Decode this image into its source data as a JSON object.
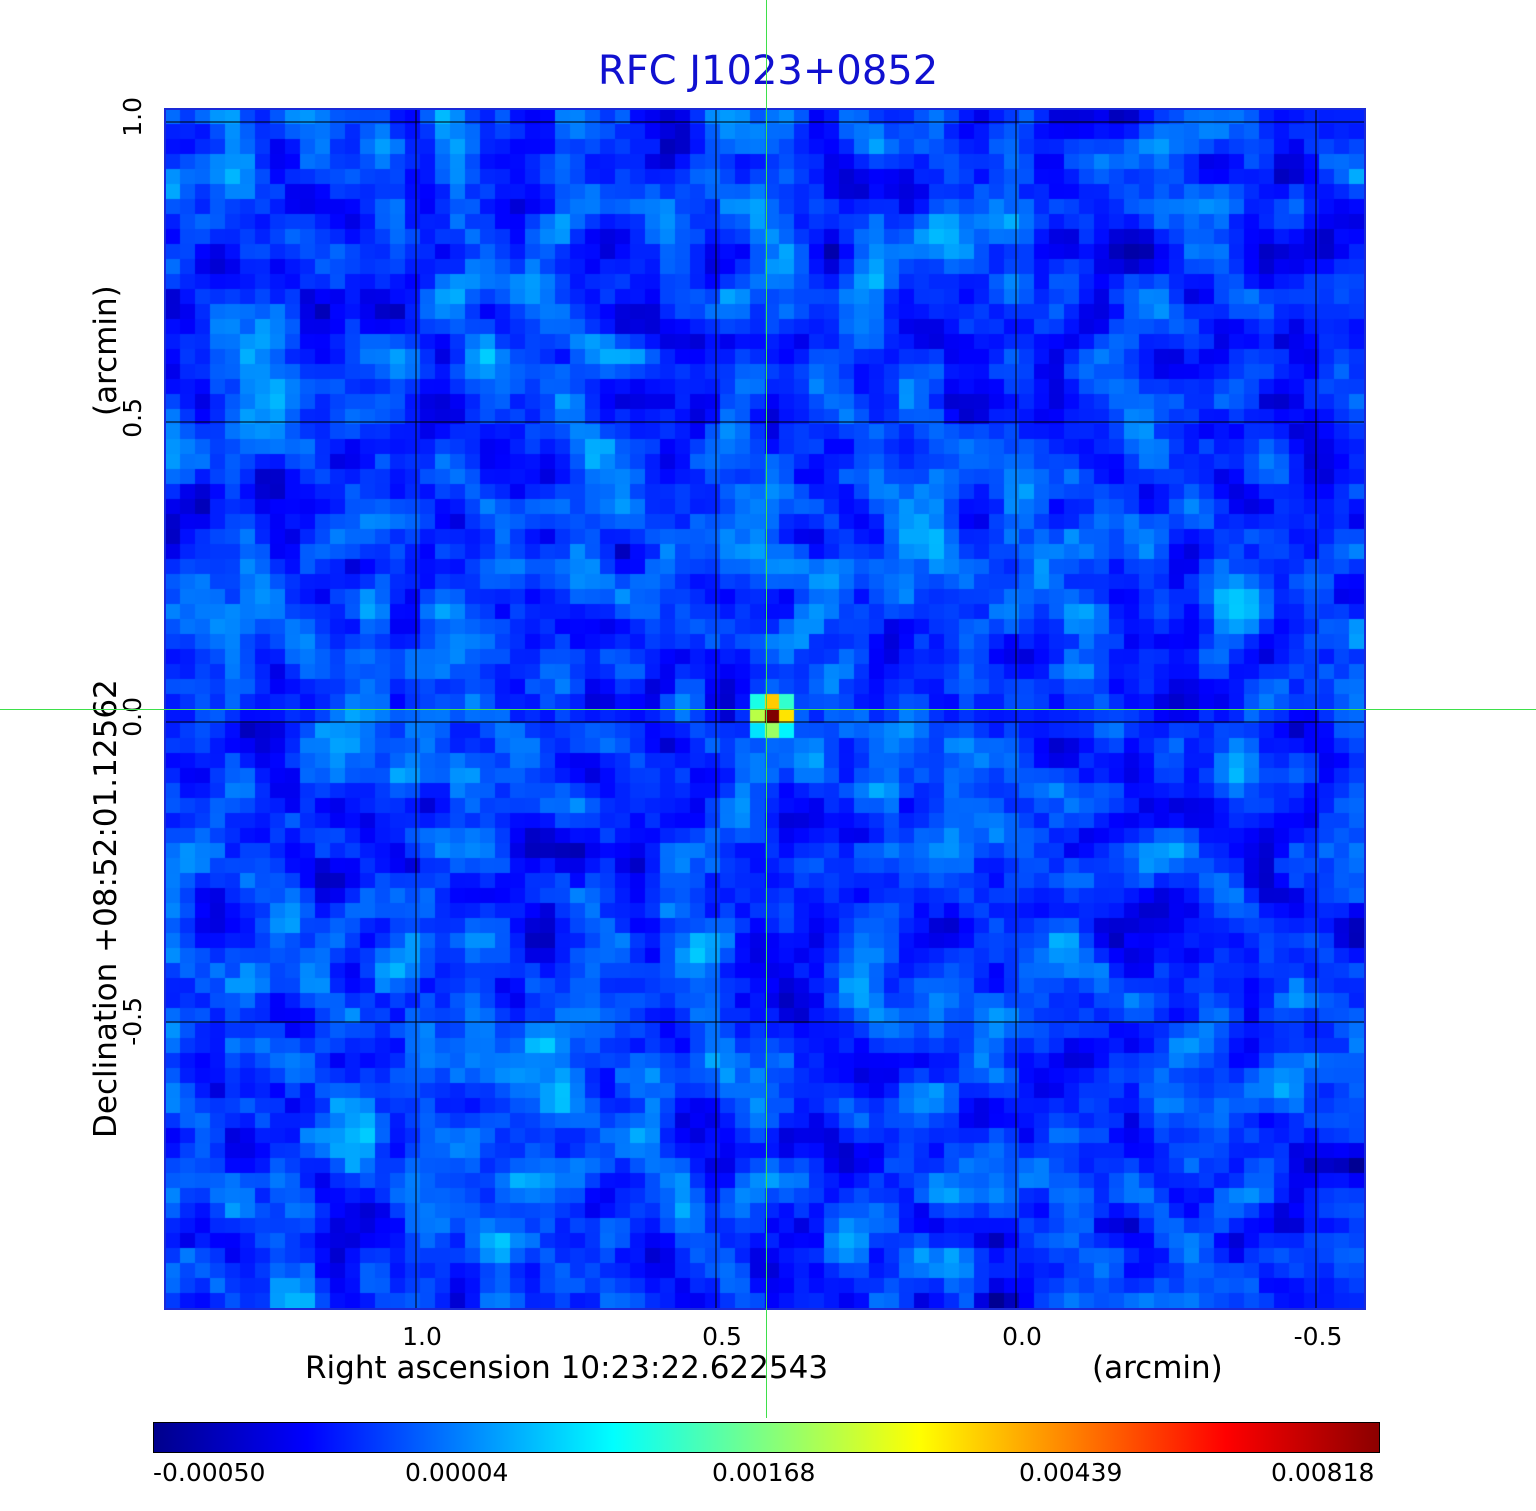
{
  "title": "RFC J1023+0852",
  "x_axis": {
    "label": "Right ascension  10:23:22.622543",
    "unit_label": "(arcmin)",
    "ticks": [
      "1.0",
      "0.5",
      "0.0",
      "-0.5"
    ]
  },
  "y_axis": {
    "label": "Declination  +08:52:01.12562",
    "unit_label": "(arcmin)",
    "ticks": [
      "1.0",
      "0.5",
      "0.0",
      "-0.5"
    ]
  },
  "colorbar": {
    "ticks": [
      "-0.00050",
      "0.00004",
      "0.00168",
      "0.00439",
      "0.00818"
    ],
    "colors": [
      "#00008c",
      "#0000ff",
      "#0080ff",
      "#00ffff",
      "#80ff80",
      "#ffff00",
      "#ff8000",
      "#ff0000",
      "#8c0000"
    ]
  },
  "image": {
    "colormap": "jet",
    "grid": true,
    "crosshair": true,
    "crosshair_color": "#3ee04a",
    "source": "compact bright peak near map center"
  }
}
